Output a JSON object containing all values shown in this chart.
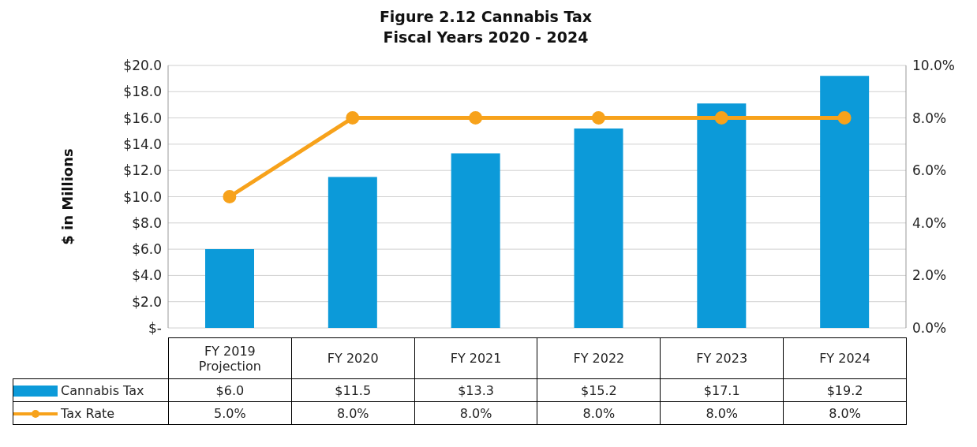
{
  "chart_data": {
    "type": "bar",
    "title": "Figure 2.12 Cannabis Tax",
    "subtitle": "Fiscal Years 2020 - 2024",
    "ylabel": "$ in Millions",
    "categories": [
      "FY 2019 Projection",
      "FY 2020",
      "FY 2021",
      "FY 2022",
      "FY 2023",
      "FY 2024"
    ],
    "series": [
      {
        "name": "Cannabis Tax",
        "color": "#0c9ad9",
        "values": [
          6.0,
          11.5,
          13.3,
          15.2,
          17.1,
          19.2
        ],
        "value_labels": [
          "$6.0",
          "$11.5",
          "$13.3",
          "$15.2",
          "$17.1",
          "$19.2"
        ]
      },
      {
        "name": "Tax Rate",
        "type": "line",
        "axis": "y2",
        "color": "#f7a21b",
        "values": [
          5.0,
          8.0,
          8.0,
          8.0,
          8.0,
          8.0
        ],
        "value_labels": [
          "5.0%",
          "8.0%",
          "8.0%",
          "8.0%",
          "8.0%",
          "8.0%"
        ]
      }
    ],
    "ylim": [
      0,
      20
    ],
    "yticks": [
      {
        "value": 0,
        "label": "$-"
      },
      {
        "value": 2,
        "label": "$2.0"
      },
      {
        "value": 4,
        "label": "$4.0"
      },
      {
        "value": 6,
        "label": "$6.0"
      },
      {
        "value": 8,
        "label": "$8.0"
      },
      {
        "value": 10,
        "label": "$10.0"
      },
      {
        "value": 12,
        "label": "$12.0"
      },
      {
        "value": 14,
        "label": "$14.0"
      },
      {
        "value": 16,
        "label": "$16.0"
      },
      {
        "value": 18,
        "label": "$18.0"
      },
      {
        "value": 20,
        "label": "$20.0"
      }
    ],
    "y2lim": [
      0,
      10
    ],
    "y2ticks": [
      {
        "value": 0,
        "label": "0.0%"
      },
      {
        "value": 2,
        "label": "2.0%"
      },
      {
        "value": 4,
        "label": "4.0%"
      },
      {
        "value": 6,
        "label": "6.0%"
      },
      {
        "value": 8,
        "label": "8.0%"
      },
      {
        "value": 10,
        "label": "10.0%"
      }
    ],
    "grid": "y",
    "legend": "bottom",
    "marker": "circle",
    "line_style": "solid"
  }
}
